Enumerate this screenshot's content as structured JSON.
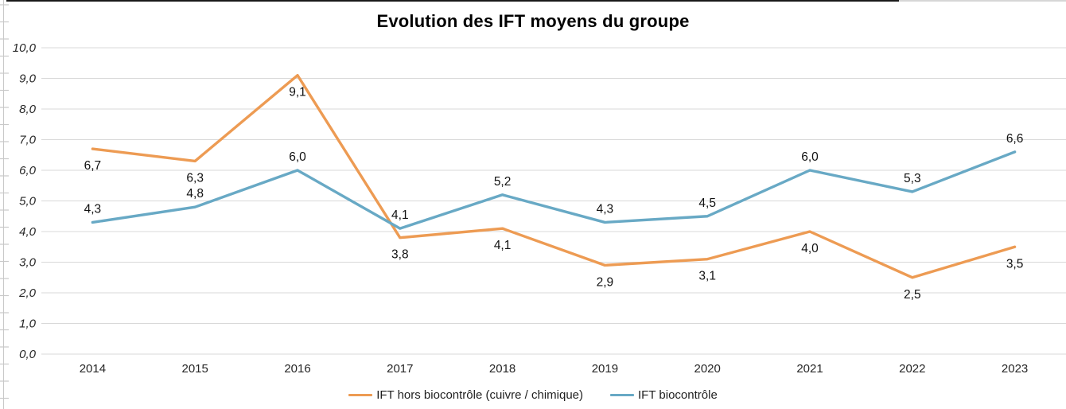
{
  "chart_data": {
    "type": "line",
    "title": "Evolution des IFT moyens du groupe",
    "categories": [
      "2014",
      "2015",
      "2016",
      "2017",
      "2018",
      "2019",
      "2020",
      "2021",
      "2022",
      "2023"
    ],
    "series": [
      {
        "name": "IFT hors biocontrôle (cuivre / chimique)",
        "color": "#ED9B53",
        "values": [
          6.7,
          6.3,
          9.1,
          3.8,
          4.1,
          2.9,
          3.1,
          4.0,
          2.5,
          3.5
        ],
        "point_labels": [
          "6,7",
          "6,3",
          "9,1",
          "3,8",
          "4,1",
          "2,9",
          "3,1",
          "4,0",
          "2,5",
          "3,5"
        ],
        "label_position": "below"
      },
      {
        "name": "IFT biocontrôle",
        "color": "#68A9C5",
        "values": [
          4.3,
          4.8,
          6.0,
          4.1,
          5.2,
          4.3,
          4.5,
          6.0,
          5.3,
          6.6
        ],
        "point_labels": [
          "4,3",
          "4,8",
          "6,0",
          "4,1",
          "5,2",
          "4,3",
          "4,5",
          "6,0",
          "5,3",
          "6,6"
        ],
        "label_position": "above"
      }
    ],
    "y_axis": {
      "min": 0,
      "max": 10,
      "step": 1,
      "tick_labels": [
        "0,0",
        "1,0",
        "2,0",
        "3,0",
        "4,0",
        "5,0",
        "6,0",
        "7,0",
        "8,0",
        "9,0",
        "10,0"
      ]
    },
    "xlabel": "",
    "ylabel": "",
    "grid": true,
    "legend_position": "bottom",
    "ylim": [
      0,
      10
    ]
  },
  "decor": {
    "gridline_color": "#D9D9D9",
    "axis_text_color": "#262626",
    "data_label_color": "#111111",
    "edge_tick_color": "#C9C9C9",
    "top_border_dark": "#1A1A1A",
    "top_border_light": "#D6D6D6"
  }
}
